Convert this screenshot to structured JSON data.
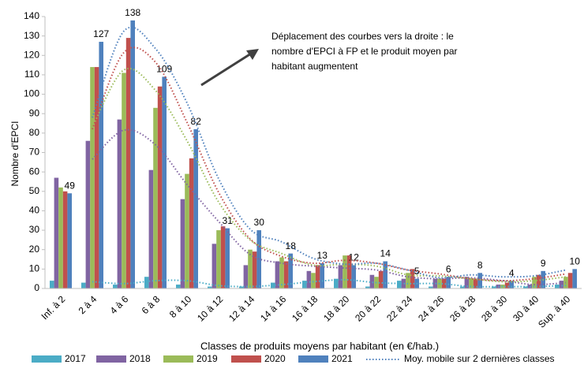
{
  "chart_data": {
    "type": "bar",
    "categories": [
      "Inf. à 2",
      "2 à 4",
      "4 à 6",
      "6 à 8",
      "8 à 10",
      "10 à 12",
      "12 à 14",
      "14 à 16",
      "16 à 18",
      "18 à 20",
      "20 à 22",
      "22 à 24",
      "24 à 26",
      "26 à 28",
      "28 à 30",
      "30 à 40",
      "Sup. à 40"
    ],
    "series": [
      {
        "name": "2017",
        "color": "#4bacc6",
        "values": [
          4,
          3,
          2,
          6,
          2,
          1,
          1,
          3,
          4,
          5,
          1,
          4,
          1,
          1,
          1,
          1,
          2
        ]
      },
      {
        "name": "2018",
        "color": "#8064a2",
        "values": [
          57,
          76,
          87,
          61,
          46,
          23,
          12,
          14,
          9,
          12,
          7,
          5,
          5,
          6,
          2,
          2,
          4
        ]
      },
      {
        "name": "2019",
        "color": "#9bbb59",
        "values": [
          52,
          114,
          111,
          93,
          59,
          30,
          20,
          16,
          8,
          17,
          6,
          8,
          5,
          5,
          2,
          6,
          6
        ]
      },
      {
        "name": "2020",
        "color": "#c0504d",
        "values": [
          50,
          114,
          129,
          104,
          67,
          32,
          19,
          14,
          12,
          17,
          9,
          10,
          5,
          5,
          3,
          7,
          8
        ]
      },
      {
        "name": "2021",
        "color": "#4f81bd",
        "values": [
          49,
          127,
          138,
          109,
          82,
          31,
          30,
          18,
          13,
          12,
          14,
          5,
          6,
          8,
          4,
          9,
          10
        ],
        "data_labels": true
      }
    ],
    "trendline": {
      "name": "Moy. mobile sur 2 dernières classes"
    },
    "xlabel": "Classes de produits moyens par habitant (en €/hab.)",
    "ylabel": "Nombre d'EPCI",
    "ylim": [
      0,
      140
    ],
    "yticks": [
      0,
      10,
      20,
      30,
      40,
      50,
      60,
      70,
      80,
      90,
      100,
      110,
      120,
      130,
      140
    ],
    "grid": false,
    "annotation": [
      "Déplacement des courbes vers la droite : le",
      "nombre d'EPCI à FP et le produit moyen par",
      "habitant augmentent"
    ]
  }
}
